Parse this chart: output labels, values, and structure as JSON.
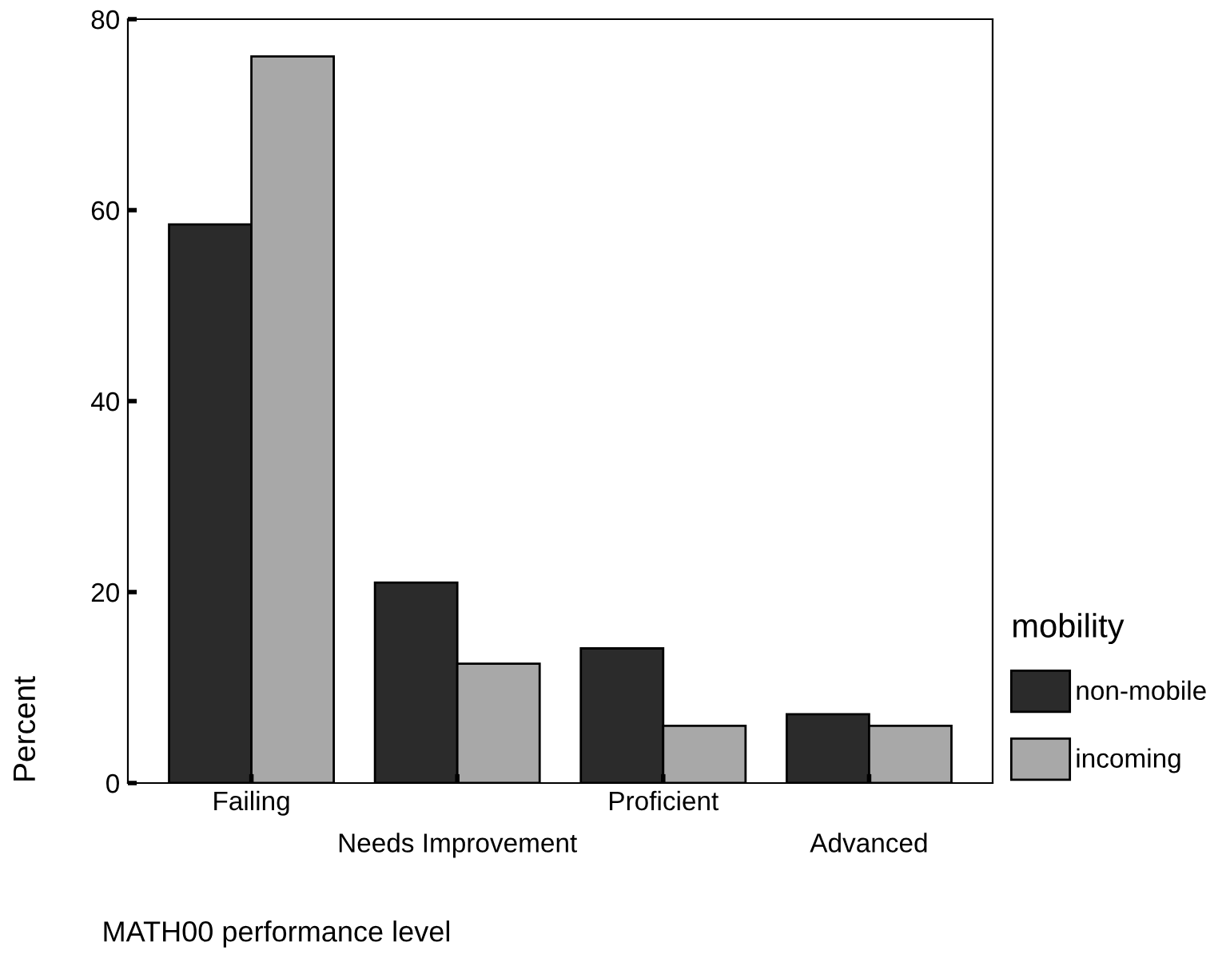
{
  "chart_data": {
    "type": "bar",
    "xlabel": "MATH00 performance level",
    "ylabel": "Percent",
    "legend_title": "mobility",
    "categories": [
      "Failing",
      "Needs Improvement",
      "Proficient",
      "Advanced"
    ],
    "series": [
      {
        "name": "non-mobile",
        "color": "#2b2b2b",
        "values": [
          58.5,
          21.0,
          14.1,
          7.2
        ]
      },
      {
        "name": "incoming",
        "color": "#a8a8a8",
        "values": [
          76.1,
          12.5,
          6.0,
          6.0
        ]
      }
    ],
    "ylim": [
      0,
      80
    ],
    "yticks": [
      0,
      20,
      40,
      60,
      80
    ],
    "grid": false,
    "legend": "right"
  }
}
